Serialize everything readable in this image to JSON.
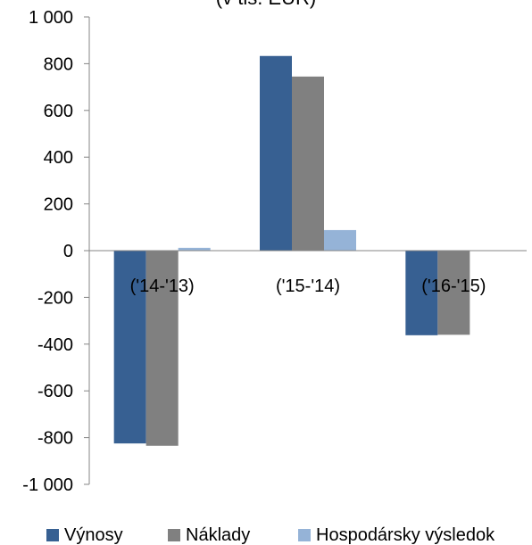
{
  "chart_data": {
    "type": "bar",
    "title": "(v tis. EUR)",
    "categories": [
      "('14-'13)",
      "('15-'14)",
      "('16-'15)"
    ],
    "series": [
      {
        "name": "Výnosy",
        "values": [
          -825,
          833,
          -362
        ],
        "color": "#376092"
      },
      {
        "name": "Náklady",
        "values": [
          -835,
          745,
          -360
        ],
        "color": "#808080"
      },
      {
        "name": "Hospodársky výsledok",
        "values": [
          12,
          88,
          0
        ],
        "color": "#95B3D7"
      }
    ],
    "ylim": [
      -1000,
      1000
    ],
    "yticks": [
      1000,
      800,
      600,
      400,
      200,
      0,
      -200,
      -400,
      -600,
      -800,
      -1000
    ],
    "ytick_labels": [
      "1 000",
      "800",
      "600",
      "400",
      "200",
      "0",
      "-200",
      "-400",
      "-600",
      "-800",
      "-1 000"
    ],
    "xlabel": "",
    "ylabel": "",
    "grid": false,
    "legend_position": "bottom"
  }
}
